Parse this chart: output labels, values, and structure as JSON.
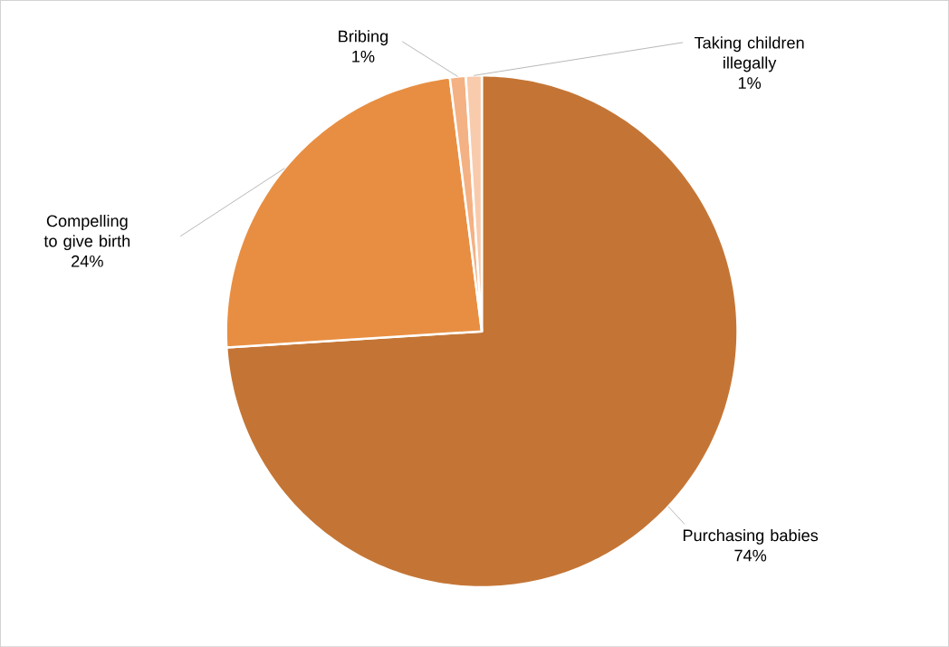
{
  "chart_data": {
    "type": "pie",
    "categories": [
      "Purchasing babies",
      "Compelling to give birth",
      "Bribing",
      "Taking children illegally"
    ],
    "values": [
      74,
      24,
      1,
      1
    ],
    "colors": [
      "#c47535",
      "#e88e42",
      "#f4b183",
      "#f8cbad"
    ],
    "value_labels": [
      "74%",
      "24%",
      "1%",
      "1%"
    ]
  }
}
